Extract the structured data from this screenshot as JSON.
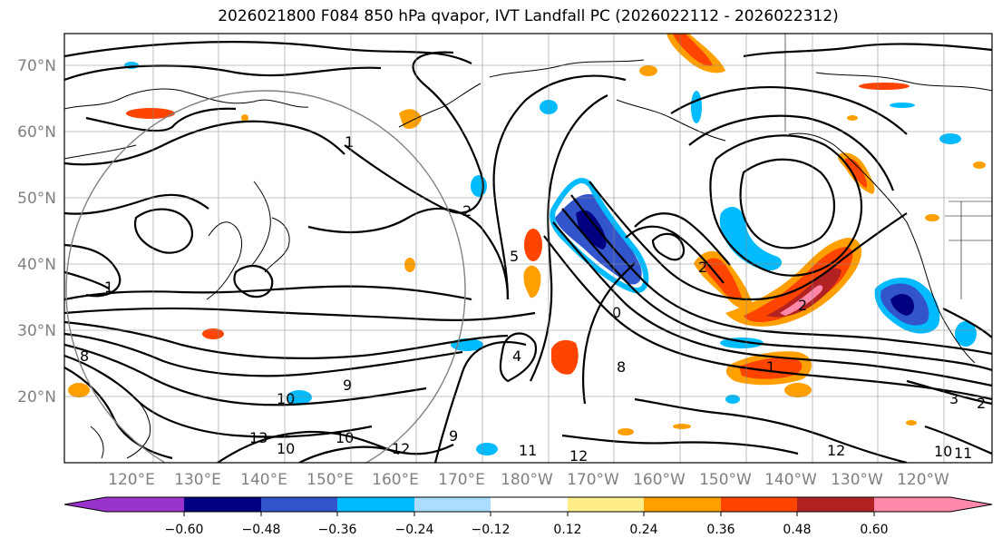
{
  "title": "2026021800 F084 850 hPa qvapor, IVT Landfall PC (2026022112 - 2026022312)",
  "lat_labels": [
    "70°N",
    "60°N",
    "50°N",
    "40°N",
    "30°N",
    "20°N"
  ],
  "lon_labels": [
    "120°E",
    "130°E",
    "140°E",
    "150°E",
    "160°E",
    "170°E",
    "180°W",
    "170°W",
    "160°W",
    "150°W",
    "140°W",
    "130°W",
    "120°W"
  ],
  "colorbar": {
    "tick_labels": [
      "−0.60",
      "−0.48",
      "−0.36",
      "−0.24",
      "−0.12",
      "0.12",
      "0.24",
      "0.36",
      "0.48",
      "0.60"
    ],
    "colors": [
      "#9933cc",
      "#000080",
      "#3355cc",
      "#00bbff",
      "#aaddff",
      "#ffffff",
      "#ffee88",
      "#ffa000",
      "#ff4400",
      "#b22222",
      "#ff88aa"
    ]
  },
  "contour_labels": [
    "1",
    "1",
    "2",
    "5",
    "2",
    "4",
    "8",
    "0",
    "1",
    "2",
    "9",
    "10",
    "10",
    "13",
    "10",
    "12",
    "8",
    "9",
    "11",
    "12",
    "12",
    "10",
    "11",
    "3",
    "2"
  ]
}
